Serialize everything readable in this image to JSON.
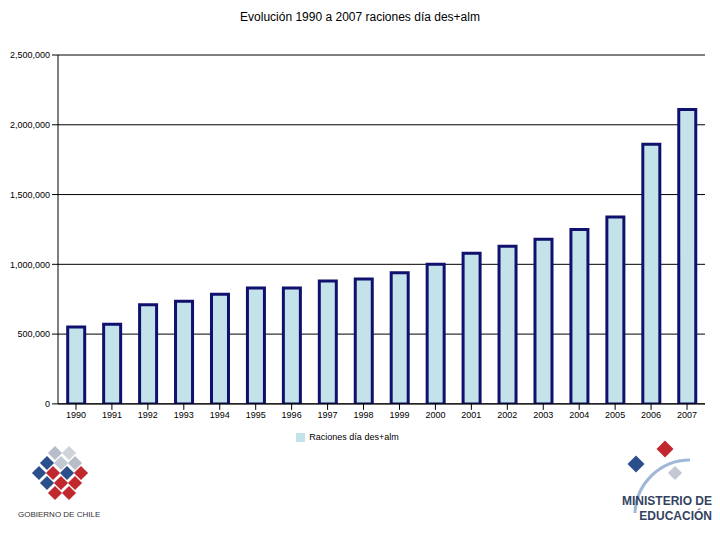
{
  "chart_data": {
    "type": "bar",
    "title": "Evolución 1990 a 2007 raciones día des+alm",
    "categories": [
      "1990",
      "1991",
      "1992",
      "1993",
      "1994",
      "1995",
      "1996",
      "1997",
      "1998",
      "1999",
      "2000",
      "2001",
      "2002",
      "2003",
      "2004",
      "2005",
      "2006",
      "2007"
    ],
    "series": [
      {
        "name": "Raciones día des+alm",
        "color": "#c4e2ea",
        "values": [
          550000,
          570000,
          710000,
          735000,
          785000,
          830000,
          830000,
          880000,
          895000,
          940000,
          1000000,
          1080000,
          1130000,
          1180000,
          1250000,
          1340000,
          1860000,
          2110000
        ]
      }
    ],
    "ylim": [
      0,
      2500000
    ],
    "yticks": [
      0,
      {
        "value": 500000,
        "label": "500,000"
      },
      {
        "value": 1000000,
        "label": "1,000,000"
      },
      {
        "value": 1500000,
        "label": "1,500,000"
      },
      {
        "value": 2000000,
        "label": "2,000,000"
      },
      {
        "value": 2500000,
        "label": "2,500,000"
      }
    ],
    "grid": true,
    "legend": "bottom"
  },
  "footer": {
    "left": "GOBIERNO DE CHILE",
    "right": [
      "MINISTERIO DE",
      "EDUCACIÓN"
    ]
  }
}
